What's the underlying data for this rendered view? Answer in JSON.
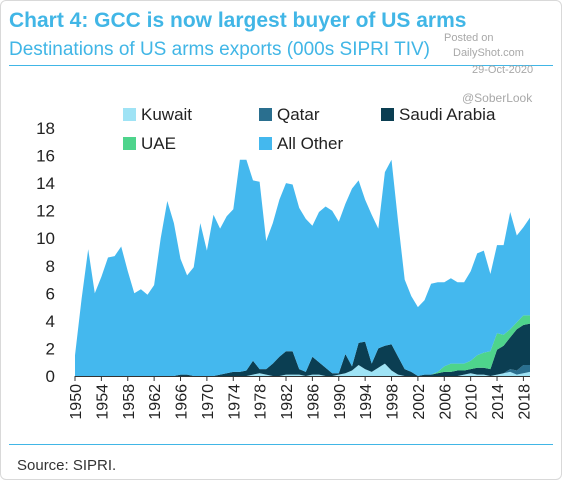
{
  "header": {
    "title": "Chart 4: GCC is now largest buyer of US arms",
    "subtitle": "Destinations of US arms exports (000s SIPRI TIV)"
  },
  "watermark": {
    "posted": "Posted on",
    "site": "DailyShot.com",
    "date": "29-Oct-2020",
    "handle": "@SoberLook"
  },
  "footer": {
    "source": "Source: SIPRI."
  },
  "colors": {
    "kuwait": "#9fe3f5",
    "qatar": "#2a6f8f",
    "saudi_arabia": "#0b3e52",
    "uae": "#4ed48c",
    "all_other": "#44b8ee",
    "accent": "#41b6e6"
  },
  "chart_data": {
    "type": "area",
    "stacked": true,
    "ylim": [
      0,
      18
    ],
    "yticks": [
      "0",
      "2",
      "4",
      "6",
      "8",
      "10",
      "12",
      "14",
      "16",
      "18"
    ],
    "xlim": [
      1950,
      2019
    ],
    "xticks": [
      "1950",
      "1954",
      "1958",
      "1962",
      "1966",
      "1970",
      "1974",
      "1978",
      "1982",
      "1986",
      "1990",
      "1994",
      "1998",
      "2002",
      "2006",
      "2010",
      "2014",
      "2018"
    ],
    "x": [
      1950,
      1951,
      1952,
      1953,
      1954,
      1955,
      1956,
      1957,
      1958,
      1959,
      1960,
      1961,
      1962,
      1963,
      1964,
      1965,
      1966,
      1967,
      1968,
      1969,
      1970,
      1971,
      1972,
      1973,
      1974,
      1975,
      1976,
      1977,
      1978,
      1979,
      1980,
      1981,
      1982,
      1983,
      1984,
      1985,
      1986,
      1987,
      1988,
      1989,
      1990,
      1991,
      1992,
      1993,
      1994,
      1995,
      1996,
      1997,
      1998,
      1999,
      2000,
      2001,
      2002,
      2003,
      2004,
      2005,
      2006,
      2007,
      2008,
      2009,
      2010,
      2011,
      2012,
      2013,
      2014,
      2015,
      2016,
      2017,
      2018,
      2019
    ],
    "legend": [
      {
        "key": "kuwait",
        "label": "Kuwait"
      },
      {
        "key": "qatar",
        "label": "Qatar"
      },
      {
        "key": "saudi_arabia",
        "label": "Saudi Arabia"
      },
      {
        "key": "uae",
        "label": "UAE"
      },
      {
        "key": "all_other",
        "label": "All Other"
      }
    ],
    "series": [
      {
        "key": "kuwait",
        "name": "Kuwait",
        "values": [
          0,
          0,
          0,
          0,
          0,
          0,
          0,
          0,
          0,
          0,
          0,
          0,
          0,
          0,
          0,
          0,
          0,
          0,
          0,
          0,
          0,
          0,
          0,
          0,
          0,
          0,
          0,
          0.1,
          0.2,
          0.1,
          0,
          0,
          0.1,
          0.1,
          0.1,
          0,
          0.1,
          0.1,
          0,
          0,
          0.1,
          0.2,
          0.4,
          0.8,
          0.5,
          0.3,
          0.6,
          0.9,
          0.4,
          0.1,
          0,
          0,
          0,
          0,
          0,
          0,
          0,
          0,
          0,
          0.1,
          0.2,
          0.1,
          0.1,
          0,
          0.1,
          0.2,
          0.3,
          0.1,
          0.2,
          0.3
        ]
      },
      {
        "key": "qatar",
        "name": "Qatar",
        "values": [
          0,
          0,
          0,
          0,
          0,
          0,
          0,
          0,
          0,
          0,
          0,
          0,
          0,
          0,
          0,
          0,
          0,
          0,
          0,
          0,
          0,
          0,
          0,
          0,
          0,
          0,
          0,
          0,
          0,
          0,
          0,
          0,
          0,
          0,
          0,
          0,
          0,
          0,
          0,
          0,
          0,
          0,
          0,
          0,
          0,
          0,
          0,
          0,
          0,
          0,
          0,
          0,
          0,
          0,
          0,
          0,
          0,
          0,
          0,
          0,
          0,
          0,
          0,
          0,
          0,
          0,
          0.2,
          0.3,
          0.6,
          0.5
        ]
      },
      {
        "key": "saudi_arabia",
        "name": "Saudi Arabia",
        "values": [
          0,
          0,
          0,
          0,
          0,
          0,
          0,
          0,
          0,
          0,
          0,
          0,
          0,
          0,
          0,
          0,
          0.1,
          0.1,
          0,
          0,
          0,
          0,
          0.1,
          0.2,
          0.3,
          0.3,
          0.4,
          1.0,
          0.3,
          0.4,
          0.9,
          1.4,
          1.7,
          1.7,
          0.4,
          0.3,
          1.3,
          0.9,
          0.6,
          0.2,
          0.1,
          1.4,
          0.3,
          1.6,
          2.0,
          0.6,
          1.4,
          1.3,
          1.9,
          1.3,
          0.5,
          0.3,
          0,
          0.1,
          0.1,
          0.2,
          0.3,
          0.3,
          0.4,
          0.3,
          0.3,
          0.5,
          0.5,
          0.5,
          1.8,
          2.0,
          2.3,
          3.0,
          2.9,
          3.0
        ]
      },
      {
        "key": "uae",
        "name": "UAE",
        "values": [
          0,
          0,
          0,
          0,
          0,
          0,
          0,
          0,
          0,
          0,
          0,
          0,
          0,
          0,
          0,
          0,
          0,
          0,
          0,
          0,
          0,
          0,
          0,
          0,
          0,
          0,
          0,
          0,
          0,
          0,
          0,
          0,
          0,
          0,
          0,
          0,
          0,
          0,
          0,
          0,
          0,
          0,
          0,
          0,
          0,
          0,
          0,
          0,
          0,
          0,
          0,
          0,
          0,
          0,
          0,
          0.1,
          0.4,
          0.6,
          0.5,
          0.5,
          0.6,
          0.9,
          1.1,
          1.3,
          1.2,
          0.8,
          0.6,
          0.5,
          0.7,
          0.6
        ]
      },
      {
        "key": "all_other",
        "name": "All Other",
        "values": [
          1.5,
          5.6,
          9.2,
          6.0,
          7.2,
          8.6,
          8.7,
          9.4,
          7.6,
          6.0,
          6.3,
          5.9,
          6.6,
          10.0,
          12.7,
          11.1,
          8.4,
          7.2,
          7.9,
          11.1,
          9.1,
          11.7,
          10.6,
          11.4,
          11.8,
          15.4,
          15.3,
          13.1,
          13.6,
          9.3,
          10.2,
          11.4,
          12.2,
          12.1,
          11.7,
          11.1,
          9.5,
          10.9,
          11.7,
          11.8,
          11.0,
          10.9,
          12.9,
          11.8,
          10.3,
          10.8,
          8.7,
          12.6,
          13.4,
          9.8,
          6.5,
          5.5,
          5.0,
          5.4,
          6.6,
          6.5,
          6.1,
          6.2,
          5.9,
          5.9,
          6.5,
          7.4,
          7.4,
          5.6,
          6.4,
          6.5,
          8.5,
          6.3,
          6.4,
          7.1
        ]
      }
    ]
  }
}
